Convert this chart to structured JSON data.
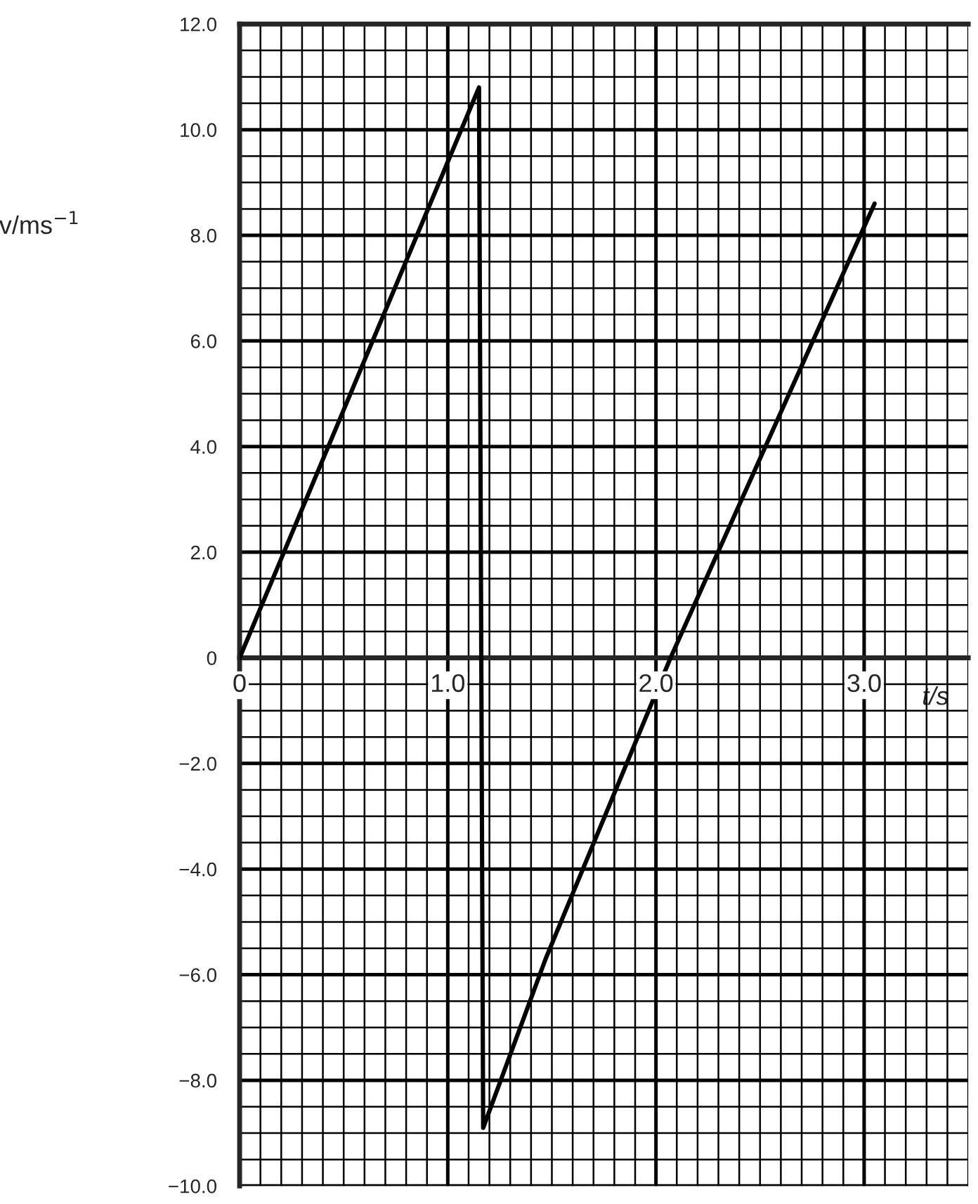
{
  "chart_data": {
    "type": "line",
    "xlabel": "t/s",
    "ylabel": "v/ms$^{−1}$",
    "x": [
      0,
      1.15,
      1.17,
      1.47,
      2.07,
      3.05
    ],
    "series": [
      {
        "color": "#000000",
        "values": [
          0,
          10.8,
          -8.9,
          -5.7,
          0,
          8.6
        ]
      }
    ],
    "xlim": [
      0,
      3.5
    ],
    "ylim": [
      -10,
      12
    ],
    "xticks": [
      0,
      {
        "value": 1,
        "label": "1.0"
      },
      {
        "value": 2,
        "label": "2.0"
      },
      {
        "value": 3,
        "label": "3.0"
      }
    ],
    "yticks": [
      {
        "value": -10,
        "label": "−10.0"
      },
      {
        "value": -8,
        "label": "−8.0"
      },
      {
        "value": -6,
        "label": "−6.0"
      },
      {
        "value": -4,
        "label": "−4.0"
      },
      {
        "value": -2,
        "label": "−2.0"
      },
      0,
      {
        "value": 2,
        "label": "2.0"
      },
      {
        "value": 4,
        "label": "4.0"
      },
      {
        "value": 6,
        "label": "6.0"
      },
      {
        "value": 8,
        "label": "8.0"
      },
      {
        "value": 10,
        "label": "10.0"
      },
      {
        "value": 12,
        "label": "12.0"
      }
    ],
    "grid": true,
    "line_style": "solid"
  }
}
